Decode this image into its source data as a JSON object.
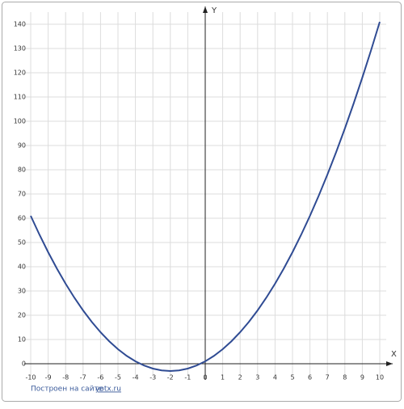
{
  "chart_data": {
    "type": "line",
    "x_label": "X",
    "y_label": "Y",
    "x": [
      -10,
      -9.5,
      -9,
      -8.5,
      -8,
      -7.5,
      -7,
      -6.5,
      -6,
      -5.5,
      -5,
      -4.5,
      -4,
      -3.5,
      -3,
      -2.5,
      -2,
      -1.5,
      -1,
      -0.5,
      0,
      0.5,
      1,
      1.5,
      2,
      2.5,
      3,
      3.5,
      4,
      4.5,
      5,
      5.5,
      6,
      6.5,
      7,
      7.5,
      8,
      8.5,
      9,
      9.5,
      10
    ],
    "series": [
      {
        "color": "#2f4b93",
        "values": [
          61,
          53.25,
          46,
          39.25,
          33,
          27.25,
          22,
          17.25,
          13,
          9.25,
          6,
          3.25,
          1,
          -0.75,
          -2,
          -2.75,
          -3,
          -2.75,
          -2,
          -0.75,
          1,
          3.25,
          6,
          9.25,
          13,
          17.25,
          22,
          27.25,
          33,
          39.25,
          46,
          53.25,
          61,
          69.25,
          78,
          87.25,
          97,
          107.25,
          118,
          129.25,
          141
        ]
      }
    ],
    "xlim": [
      -10,
      10
    ],
    "ylim": [
      -5,
      147
    ],
    "xticks": [
      -10,
      -9,
      -8,
      -7,
      -6,
      -5,
      -4,
      -3,
      -2,
      -1,
      0,
      1,
      2,
      3,
      4,
      5,
      6,
      7,
      8,
      9,
      10
    ],
    "yticks": [
      0,
      10,
      20,
      30,
      40,
      50,
      60,
      70,
      80,
      90,
      100,
      110,
      120,
      130,
      140
    ],
    "grid": true
  },
  "footer": {
    "text": "Построен на сайте",
    "link": "yotx.ru"
  }
}
